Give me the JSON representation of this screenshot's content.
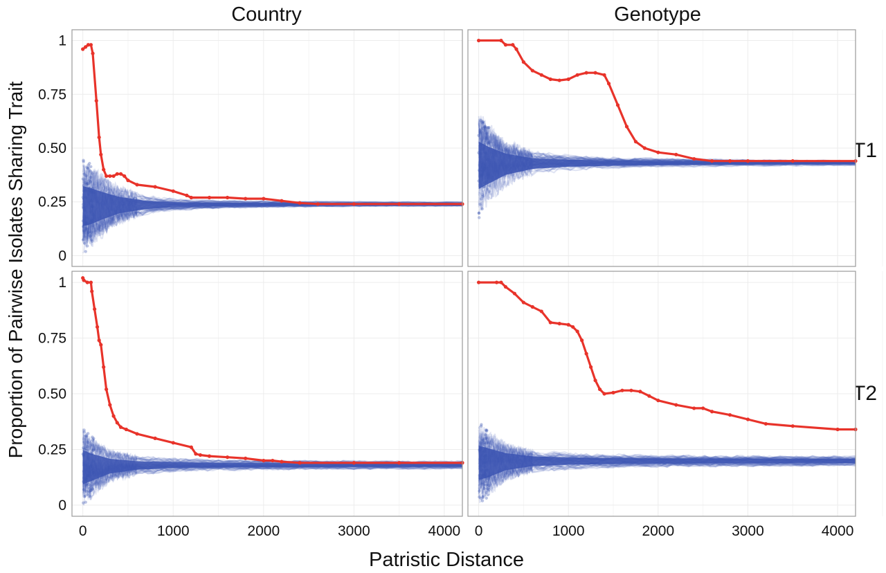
{
  "figure": {
    "ylabel": "Proportion of Pairwise Isolates Sharing Trait",
    "xlabel": "Patristic Distance",
    "columns": [
      "Country",
      "Genotype"
    ],
    "rows": [
      "T1",
      "T2"
    ],
    "colors": {
      "observed": "#e8332a",
      "null": "#3d55b3",
      "grid": "#ececec",
      "frame": "#9a9a9a"
    }
  },
  "chart_data": [
    {
      "type": "line",
      "facet": {
        "column": "Country",
        "row": "T1"
      },
      "xlim": [
        -120,
        4200
      ],
      "ylim": [
        -0.05,
        1.05
      ],
      "xticks": [
        "0",
        "1000",
        "2000",
        "3000",
        "4000"
      ],
      "yticks": [
        "0",
        "0.25",
        "0.50",
        "0.75",
        "1"
      ],
      "grid": true,
      "series": [
        {
          "role": "observed",
          "x": [
            0,
            30,
            60,
            90,
            110,
            150,
            180,
            200,
            230,
            260,
            300,
            340,
            380,
            420,
            460,
            500,
            600,
            800,
            1000,
            1150,
            1200,
            1400,
            1600,
            1800,
            2000,
            2200,
            2400,
            2600,
            3000,
            3500,
            4200
          ],
          "y": [
            0.96,
            0.97,
            0.98,
            0.98,
            0.94,
            0.72,
            0.55,
            0.47,
            0.4,
            0.37,
            0.37,
            0.37,
            0.38,
            0.38,
            0.37,
            0.35,
            0.33,
            0.32,
            0.3,
            0.28,
            0.27,
            0.27,
            0.27,
            0.265,
            0.265,
            0.255,
            0.245,
            0.24,
            0.24,
            0.24,
            0.24
          ]
        },
        {
          "role": "null",
          "x": [
            0,
            100,
            200,
            400,
            700,
            1000,
            1500,
            2000,
            3000,
            4200
          ],
          "mean": [
            0.23,
            0.23,
            0.232,
            0.235,
            0.236,
            0.237,
            0.238,
            0.239,
            0.24,
            0.24
          ],
          "spread": [
            0.17,
            0.15,
            0.12,
            0.07,
            0.035,
            0.022,
            0.015,
            0.012,
            0.009,
            0.008
          ]
        }
      ]
    },
    {
      "type": "line",
      "facet": {
        "column": "Genotype",
        "row": "T1"
      },
      "xlim": [
        -120,
        4200
      ],
      "ylim": [
        -0.05,
        1.05
      ],
      "xticks": [
        "0",
        "1000",
        "2000",
        "3000",
        "4000"
      ],
      "yticks": [
        "0",
        "0.25",
        "0.50",
        "0.75",
        "1"
      ],
      "grid": true,
      "series": [
        {
          "role": "observed",
          "x": [
            0,
            250,
            300,
            380,
            420,
            500,
            600,
            700,
            800,
            900,
            1000,
            1100,
            1200,
            1300,
            1400,
            1450,
            1550,
            1650,
            1750,
            1850,
            2000,
            2200,
            2400,
            2600,
            2800,
            3000,
            3500,
            4200
          ],
          "y": [
            1.0,
            1.0,
            0.98,
            0.98,
            0.96,
            0.9,
            0.86,
            0.84,
            0.82,
            0.815,
            0.82,
            0.84,
            0.85,
            0.85,
            0.84,
            0.8,
            0.7,
            0.6,
            0.53,
            0.5,
            0.48,
            0.47,
            0.45,
            0.44,
            0.44,
            0.44,
            0.44,
            0.44
          ]
        },
        {
          "role": "null",
          "x": [
            0,
            100,
            300,
            600,
            1000,
            1500,
            2000,
            3000,
            4200
          ],
          "mean": [
            0.42,
            0.42,
            0.425,
            0.428,
            0.43,
            0.43,
            0.43,
            0.43,
            0.43
          ],
          "spread": [
            0.2,
            0.16,
            0.09,
            0.045,
            0.03,
            0.022,
            0.018,
            0.013,
            0.01
          ]
        }
      ]
    },
    {
      "type": "line",
      "facet": {
        "column": "Country",
        "row": "T2"
      },
      "xlim": [
        -120,
        4200
      ],
      "ylim": [
        -0.05,
        1.05
      ],
      "xticks": [
        "0",
        "1000",
        "2000",
        "3000",
        "4000"
      ],
      "yticks": [
        "0",
        "0.25",
        "0.50",
        "0.75",
        "1"
      ],
      "grid": true,
      "series": [
        {
          "role": "observed",
          "x": [
            0,
            10,
            50,
            90,
            100,
            130,
            160,
            180,
            200,
            230,
            260,
            300,
            340,
            380,
            420,
            480,
            600,
            800,
            1000,
            1200,
            1250,
            1300,
            1400,
            1600,
            1800,
            2000,
            2100,
            2200,
            2400,
            3000,
            3500,
            4200
          ],
          "y": [
            1.02,
            1.01,
            1.0,
            1.0,
            0.96,
            0.88,
            0.8,
            0.74,
            0.72,
            0.62,
            0.52,
            0.45,
            0.4,
            0.37,
            0.35,
            0.34,
            0.32,
            0.3,
            0.28,
            0.26,
            0.23,
            0.225,
            0.22,
            0.215,
            0.21,
            0.2,
            0.2,
            0.195,
            0.19,
            0.19,
            0.19,
            0.19
          ]
        },
        {
          "role": "null",
          "x": [
            0,
            100,
            300,
            600,
            1000,
            1500,
            2000,
            3000,
            4200
          ],
          "mean": [
            0.17,
            0.17,
            0.175,
            0.178,
            0.18,
            0.18,
            0.18,
            0.18,
            0.18
          ],
          "spread": [
            0.14,
            0.11,
            0.06,
            0.035,
            0.025,
            0.02,
            0.018,
            0.016,
            0.015
          ]
        }
      ]
    },
    {
      "type": "line",
      "facet": {
        "column": "Genotype",
        "row": "T2"
      },
      "xlim": [
        -120,
        4200
      ],
      "ylim": [
        -0.05,
        1.05
      ],
      "xticks": [
        "0",
        "1000",
        "2000",
        "3000",
        "4000"
      ],
      "yticks": [
        "0",
        "0.25",
        "0.50",
        "0.75",
        "1"
      ],
      "grid": true,
      "series": [
        {
          "role": "observed",
          "x": [
            0,
            200,
            250,
            300,
            400,
            500,
            600,
            700,
            800,
            900,
            1000,
            1050,
            1100,
            1150,
            1200,
            1250,
            1300,
            1350,
            1400,
            1500,
            1600,
            1700,
            1800,
            1900,
            2000,
            2200,
            2400,
            2500,
            2600,
            2800,
            3000,
            3200,
            3500,
            4000,
            4200
          ],
          "y": [
            1.0,
            1.0,
            1.0,
            0.98,
            0.95,
            0.91,
            0.89,
            0.87,
            0.82,
            0.815,
            0.81,
            0.8,
            0.78,
            0.74,
            0.68,
            0.62,
            0.56,
            0.52,
            0.5,
            0.505,
            0.515,
            0.515,
            0.51,
            0.49,
            0.47,
            0.45,
            0.435,
            0.435,
            0.42,
            0.405,
            0.385,
            0.365,
            0.355,
            0.34,
            0.34
          ]
        },
        {
          "role": "null",
          "x": [
            0,
            100,
            300,
            600,
            1000,
            1500,
            2000,
            3000,
            4200
          ],
          "mean": [
            0.19,
            0.19,
            0.195,
            0.197,
            0.198,
            0.198,
            0.198,
            0.198,
            0.198
          ],
          "spread": [
            0.14,
            0.12,
            0.07,
            0.04,
            0.03,
            0.025,
            0.022,
            0.02,
            0.018
          ]
        }
      ]
    }
  ]
}
